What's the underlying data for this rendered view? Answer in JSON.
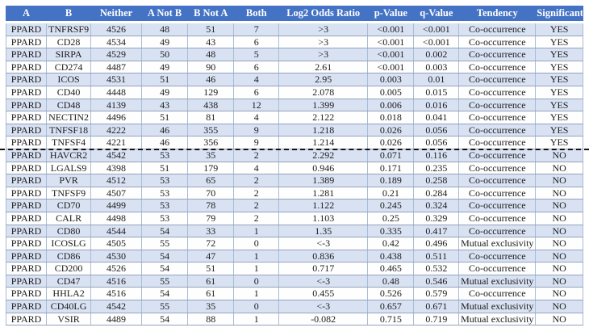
{
  "table": {
    "name": "gene-cooccurrence-significance-table",
    "columns": [
      "A",
      "B",
      "Neither",
      "A Not B",
      "B Not A",
      "Both",
      "Log2 Odds Ratio",
      "p-Value",
      "q-Value",
      "Tendency",
      "Significant"
    ],
    "rows": [
      [
        "PPARD",
        "TNFRSF9",
        "4526",
        "48",
        "51",
        "7",
        ">3",
        "<0.001",
        "<0.001",
        "Co-occurrence",
        "YES"
      ],
      [
        "PPARD",
        "CD28",
        "4534",
        "49",
        "43",
        "6",
        ">3",
        "<0.001",
        "<0.001",
        "Co-occurrence",
        "YES"
      ],
      [
        "PPARD",
        "SIRPA",
        "4529",
        "50",
        "48",
        "5",
        ">3",
        "<0.001",
        "0.002",
        "Co-occurrence",
        "YES"
      ],
      [
        "PPARD",
        "CD274",
        "4487",
        "49",
        "90",
        "6",
        "2.61",
        "<0.001",
        "0.003",
        "Co-occurrence",
        "YES"
      ],
      [
        "PPARD",
        "ICOS",
        "4531",
        "51",
        "46",
        "4",
        "2.95",
        "0.003",
        "0.01",
        "Co-occurrence",
        "YES"
      ],
      [
        "PPARD",
        "CD40",
        "4448",
        "49",
        "129",
        "6",
        "2.078",
        "0.005",
        "0.015",
        "Co-occurrence",
        "YES"
      ],
      [
        "PPARD",
        "CD48",
        "4139",
        "43",
        "438",
        "12",
        "1.399",
        "0.006",
        "0.016",
        "Co-occurrence",
        "YES"
      ],
      [
        "PPARD",
        "NECTIN2",
        "4496",
        "51",
        "81",
        "4",
        "2.122",
        "0.018",
        "0.041",
        "Co-occurrence",
        "YES"
      ],
      [
        "PPARD",
        "TNFSF18",
        "4222",
        "46",
        "355",
        "9",
        "1.218",
        "0.026",
        "0.056",
        "Co-occurrence",
        "YES"
      ],
      [
        "PPARD",
        "TNFSF4",
        "4221",
        "46",
        "356",
        "9",
        "1.214",
        "0.026",
        "0.056",
        "Co-occurrence",
        "YES"
      ],
      [
        "PPARD",
        "HAVCR2",
        "4542",
        "53",
        "35",
        "2",
        "2.292",
        "0.071",
        "0.116",
        "Co-occurrence",
        "NO"
      ],
      [
        "PPARD",
        "LGALS9",
        "4398",
        "51",
        "179",
        "4",
        "0.946",
        "0.171",
        "0.235",
        "Co-occurrence",
        "NO"
      ],
      [
        "PPARD",
        "PVR",
        "4512",
        "53",
        "65",
        "2",
        "1.389",
        "0.189",
        "0.258",
        "Co-occurrence",
        "NO"
      ],
      [
        "PPARD",
        "TNFSF9",
        "4507",
        "53",
        "70",
        "2",
        "1.281",
        "0.21",
        "0.284",
        "Co-occurrence",
        "NO"
      ],
      [
        "PPARD",
        "CD70",
        "4499",
        "53",
        "78",
        "2",
        "1.122",
        "0.245",
        "0.324",
        "Co-occurrence",
        "NO"
      ],
      [
        "PPARD",
        "CALR",
        "4498",
        "53",
        "79",
        "2",
        "1.103",
        "0.25",
        "0.329",
        "Co-occurrence",
        "NO"
      ],
      [
        "PPARD",
        "CD80",
        "4544",
        "54",
        "33",
        "1",
        "1.35",
        "0.335",
        "0.417",
        "Co-occurrence",
        "NO"
      ],
      [
        "PPARD",
        "ICOSLG",
        "4505",
        "55",
        "72",
        "0",
        "<-3",
        "0.42",
        "0.496",
        "Mutual exclusivity",
        "NO"
      ],
      [
        "PPARD",
        "CD86",
        "4530",
        "54",
        "47",
        "1",
        "0.836",
        "0.438",
        "0.511",
        "Co-occurrence",
        "NO"
      ],
      [
        "PPARD",
        "CD200",
        "4526",
        "54",
        "51",
        "1",
        "0.717",
        "0.465",
        "0.532",
        "Co-occurrence",
        "NO"
      ],
      [
        "PPARD",
        "CD47",
        "4516",
        "55",
        "61",
        "0",
        "<-3",
        "0.48",
        "0.546",
        "Mutual exclusivity",
        "NO"
      ],
      [
        "PPARD",
        "HHLA2",
        "4516",
        "54",
        "61",
        "1",
        "0.455",
        "0.526",
        "0.579",
        "Co-occurrence",
        "NO"
      ],
      [
        "PPARD",
        "CD40LG",
        "4542",
        "55",
        "35",
        "0",
        "<-3",
        "0.657",
        "0.671",
        "Mutual exclusivity",
        "NO"
      ],
      [
        "PPARD",
        "VSIR",
        "4489",
        "54",
        "88",
        "1",
        "-0.082",
        "0.715",
        "0.719",
        "Mutual exclusivity",
        "NO"
      ]
    ],
    "dashed_separator_after_row_index": 9,
    "col_width_percents": [
      7,
      7.7,
      8.8,
      8,
      8,
      7.8,
      15.4,
      8,
      7.8,
      13.3,
      8.2
    ],
    "colors": {
      "header_bg": "#4472C4",
      "header_text": "#FFFFFF",
      "band_row_bg": "#D9E2F3",
      "plain_row_bg": "#FEFEFE",
      "cell_border": "#A9BDD6",
      "separator_line": "#121212"
    }
  }
}
